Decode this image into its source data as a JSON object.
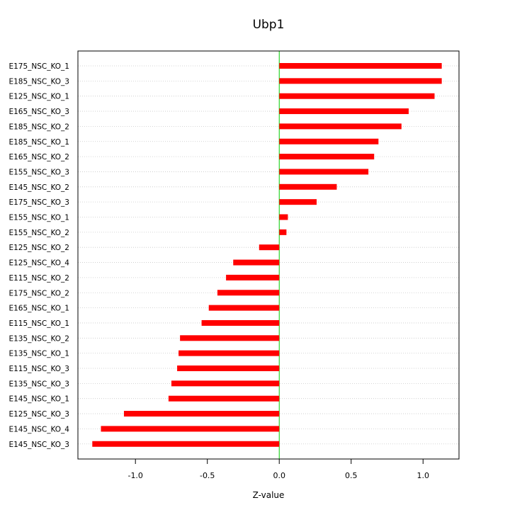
{
  "chart_data": {
    "type": "bar",
    "orientation": "horizontal",
    "title": "Ubp1",
    "xlabel": "Z-value",
    "ylabel": "",
    "xlim": [
      -1.4,
      1.25
    ],
    "xticks": [
      -1.0,
      -0.5,
      0.0,
      0.5,
      1.0
    ],
    "xtick_labels": [
      "-1.0",
      "-0.5",
      "0.0",
      "0.5",
      "1.0"
    ],
    "grid": "horizontal dotted",
    "bar_color": "#ff0000",
    "zero_line_color": "#00cc00",
    "categories": [
      "E175_NSC_KO_1",
      "E185_NSC_KO_3",
      "E125_NSC_KO_1",
      "E165_NSC_KO_3",
      "E185_NSC_KO_2",
      "E185_NSC_KO_1",
      "E165_NSC_KO_2",
      "E155_NSC_KO_3",
      "E145_NSC_KO_2",
      "E175_NSC_KO_3",
      "E155_NSC_KO_1",
      "E155_NSC_KO_2",
      "E125_NSC_KO_2",
      "E125_NSC_KO_4",
      "E115_NSC_KO_2",
      "E175_NSC_KO_2",
      "E165_NSC_KO_1",
      "E115_NSC_KO_1",
      "E135_NSC_KO_2",
      "E135_NSC_KO_1",
      "E115_NSC_KO_3",
      "E135_NSC_KO_3",
      "E145_NSC_KO_1",
      "E125_NSC_KO_3",
      "E145_NSC_KO_4",
      "E145_NSC_KO_3"
    ],
    "values": [
      1.13,
      1.13,
      1.08,
      0.9,
      0.85,
      0.69,
      0.66,
      0.62,
      0.4,
      0.26,
      0.06,
      0.05,
      -0.14,
      -0.32,
      -0.37,
      -0.43,
      -0.49,
      -0.54,
      -0.69,
      -0.7,
      -0.71,
      -0.75,
      -0.77,
      -1.08,
      -1.24,
      -1.3
    ]
  }
}
